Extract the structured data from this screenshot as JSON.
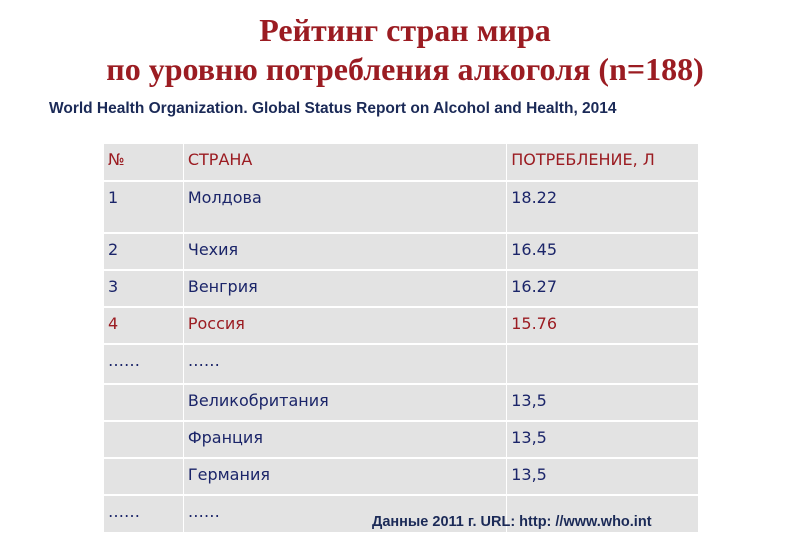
{
  "title": {
    "line1": "Рейтинг стран мира",
    "line2": "по уровню потребления алкоголя (n=188)"
  },
  "source": "World Health Organization. Global Status Report on Alcohol and Health, 2014",
  "table": {
    "headers": [
      "№",
      "СТРАНА",
      "ПОТРЕБЛЕНИЕ, Л"
    ],
    "rows": [
      [
        "1",
        "Молдова",
        "18.22"
      ],
      [
        "2",
        "Чехия",
        "16.45"
      ],
      [
        "3",
        "Венгрия",
        "16.27"
      ],
      [
        "4",
        "Россия",
        "15.76"
      ],
      [
        "……",
        "……",
        ""
      ],
      [
        "",
        "Великобритания",
        "13,5"
      ],
      [
        "",
        "Франция",
        "13,5"
      ],
      [
        "",
        "Германия",
        "13,5"
      ],
      [
        "……",
        "……",
        ""
      ]
    ]
  },
  "footer": "Данные 2011 г. URL: http: //www.who.int",
  "colors": {
    "title": "#9b1c22",
    "highlight": "#9b1c22",
    "text": "#1b2569",
    "table_bg": "#e3e3e3"
  }
}
